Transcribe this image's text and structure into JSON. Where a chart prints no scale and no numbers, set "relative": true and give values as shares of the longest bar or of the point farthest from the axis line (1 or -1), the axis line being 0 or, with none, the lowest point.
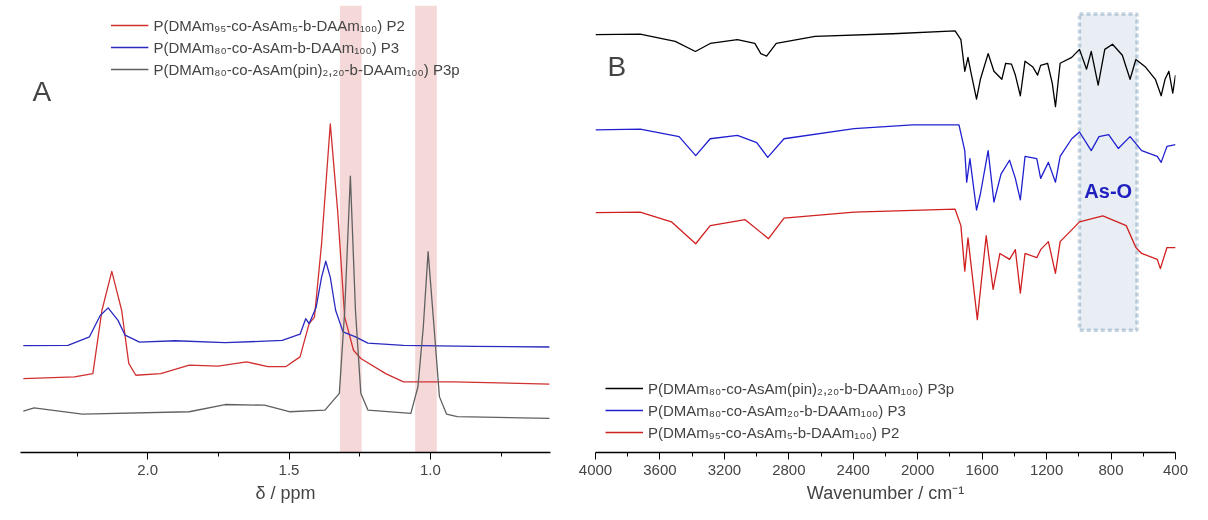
{
  "chart_data": [
    {
      "type": "line",
      "relative": true,
      "xlabel": "δ / ppm",
      "annotations": [
        "A"
      ],
      "legend": "top",
      "tick_labels": "x",
      "xlim": [
        2.45,
        0.575
      ],
      "xticks": [
        {
          "value": 2.25,
          "label": null
        },
        {
          "value": 2.0,
          "label": "2.0"
        },
        {
          "value": 1.75,
          "label": null
        },
        {
          "value": 1.5,
          "label": "1.5"
        },
        {
          "value": 1.25,
          "label": null
        },
        {
          "value": 1.0,
          "label": "1.0"
        },
        {
          "value": 0.75,
          "label": null
        }
      ],
      "bands": [
        {
          "axis": "x",
          "from": 1.32,
          "to": 1.243,
          "color": "#f2d0d0"
        },
        {
          "axis": "x",
          "from": 1.054,
          "to": 0.977,
          "color": "#f2d0d0"
        }
      ],
      "series": [
        {
          "name": "P(DMAm₉₅-co-AsAm₅-b-DAAm₁₀₀) P2",
          "color": "#d03030",
          "x": [
            2.44,
            2.259,
            2.194,
            2.162,
            2.127,
            2.092,
            2.067,
            2.042,
            1.954,
            1.853,
            1.751,
            1.65,
            1.575,
            1.512,
            1.461,
            1.429,
            1.41,
            1.385,
            1.354,
            1.328,
            1.303,
            1.272,
            1.246,
            1.158,
            1.095,
            0.918,
            0.579
          ],
          "values": [
            0.225,
            0.23,
            0.24,
            0.432,
            0.551,
            0.432,
            0.271,
            0.235,
            0.24,
            0.266,
            0.263,
            0.276,
            0.261,
            0.261,
            0.291,
            0.392,
            0.412,
            0.634,
            1.0,
            0.735,
            0.412,
            0.311,
            0.286,
            0.24,
            0.215,
            0.215,
            0.208
          ]
        },
        {
          "name": "P(DMAm₈₀-co-AsAm-b-DAAm₁₀₀) P3",
          "color": "#2a2ac0",
          "x": [
            2.44,
            2.282,
            2.206,
            2.168,
            2.14,
            2.105,
            2.08,
            2.029,
            1.903,
            1.726,
            1.524,
            1.461,
            1.441,
            1.429,
            1.404,
            1.385,
            1.37,
            1.354,
            1.335,
            1.309,
            1.265,
            1.221,
            1.095,
            0.842,
            0.579
          ],
          "values": [
            0.325,
            0.326,
            0.352,
            0.417,
            0.44,
            0.402,
            0.357,
            0.336,
            0.34,
            0.334,
            0.341,
            0.36,
            0.407,
            0.392,
            0.442,
            0.533,
            0.582,
            0.533,
            0.432,
            0.367,
            0.352,
            0.333,
            0.326,
            0.323,
            0.321
          ]
        },
        {
          "name": "P(DMAm₈₀-co-AsAm(pin)₂,₂₀-b-DAAm₁₀₀) P3p",
          "color": "#606060",
          "x": [
            2.44,
            2.402,
            2.231,
            1.853,
            1.726,
            1.587,
            1.499,
            1.373,
            1.322,
            1.303,
            1.283,
            1.265,
            1.246,
            1.221,
            1.069,
            1.044,
            1.025,
            1.008,
            0.987,
            0.968,
            0.943,
            0.905,
            0.579
          ],
          "values": [
            0.126,
            0.136,
            0.117,
            0.124,
            0.146,
            0.144,
            0.124,
            0.129,
            0.18,
            0.432,
            0.841,
            0.432,
            0.18,
            0.129,
            0.119,
            0.2,
            0.382,
            0.611,
            0.382,
            0.17,
            0.117,
            0.109,
            0.104
          ]
        }
      ]
    },
    {
      "type": "line",
      "relative": true,
      "xlabel": "Wavenumber / cm⁻¹",
      "annotations": [
        "B"
      ],
      "legend": "bottom left",
      "tick_labels": "x",
      "xlim": [
        4000,
        400
      ],
      "xticks": [
        4000,
        {
          "value": 3800,
          "label": null
        },
        3600,
        {
          "value": 3400,
          "label": null
        },
        3200,
        {
          "value": 3000,
          "label": null
        },
        2800,
        {
          "value": 2600,
          "label": null
        },
        2400,
        {
          "value": 2200,
          "label": null
        },
        2000,
        {
          "value": 1800,
          "label": null
        },
        1600,
        {
          "value": 1400,
          "label": null
        },
        1200,
        {
          "value": 1000,
          "label": null
        },
        800,
        {
          "value": 600,
          "label": null
        },
        400
      ],
      "bands": [
        {
          "axis": "x",
          "from": 996,
          "to": 639,
          "label": "As-O",
          "color": "#41719c"
        }
      ],
      "series": [
        {
          "name": "P(DMAm₈₀-co-AsAm(pin)₂,₂₀-b-DAAm₁₀₀) P3p",
          "color": "#000000",
          "x": [
            4000,
            3723,
            3505,
            3380,
            3288,
            3119,
            3011,
            2974,
            2938,
            2878,
            2637,
            2154,
            1768,
            1732,
            1708,
            1688,
            1671,
            1635,
            1611,
            1563,
            1527,
            1478,
            1454,
            1418,
            1394,
            1363,
            1334,
            1285,
            1256,
            1237,
            1194,
            1165,
            1145,
            1116,
            1044,
            996,
            952,
            923,
            880,
            839,
            791,
            730,
            682,
            646,
            586,
            525,
            489,
            465,
            441,
            417,
            400
          ],
          "values": [
            0.991,
            0.992,
            0.975,
            0.951,
            0.97,
            0.979,
            0.97,
            0.946,
            0.94,
            0.97,
            0.987,
            0.993,
            1.0,
            0.979,
            0.904,
            0.937,
            0.904,
            0.838,
            0.885,
            0.946,
            0.904,
            0.885,
            0.923,
            0.921,
            0.895,
            0.846,
            0.928,
            0.914,
            0.895,
            0.918,
            0.923,
            0.876,
            0.82,
            0.923,
            0.937,
            0.956,
            0.909,
            0.951,
            0.871,
            0.956,
            0.968,
            0.942,
            0.885,
            0.932,
            0.914,
            0.885,
            0.846,
            0.885,
            0.904,
            0.852,
            0.895
          ]
        },
        {
          "name": "P(DMAm₈₀-co-AsAm₂₀-b-DAAm₁₀₀) P3",
          "color": "#2020d0",
          "x": [
            4000,
            3723,
            3481,
            3378,
            3288,
            3119,
            2999,
            2931,
            2830,
            2395,
            2033,
            1744,
            1708,
            1696,
            1676,
            1635,
            1611,
            1563,
            1527,
            1483,
            1430,
            1394,
            1363,
            1334,
            1261,
            1237,
            1189,
            1145,
            1116,
            1044,
            996,
            923,
            875,
            815,
            755,
            682,
            610,
            513,
            489,
            453,
            400
          ],
          "values": [
            0.765,
            0.767,
            0.749,
            0.704,
            0.744,
            0.752,
            0.735,
            0.7,
            0.744,
            0.768,
            0.777,
            0.777,
            0.716,
            0.641,
            0.697,
            0.575,
            0.613,
            0.716,
            0.594,
            0.66,
            0.693,
            0.65,
            0.599,
            0.702,
            0.697,
            0.65,
            0.688,
            0.641,
            0.702,
            0.744,
            0.76,
            0.716,
            0.749,
            0.754,
            0.721,
            0.749,
            0.716,
            0.702,
            0.688,
            0.726,
            0.73
          ]
        },
        {
          "name": "P(DMAm₉₅-co-AsAm₅-b-DAAm₁₀₀) P2",
          "color": "#d02020",
          "x": [
            4000,
            3723,
            3529,
            3378,
            3288,
            3071,
            2926,
            2830,
            2395,
            1768,
            1732,
            1708,
            1688,
            1630,
            1575,
            1532,
            1490,
            1430,
            1394,
            1363,
            1334,
            1261,
            1237,
            1189,
            1145,
            1116,
            1044,
            996,
            851,
            706,
            646,
            610,
            513,
            494,
            453,
            400
          ],
          "values": [
            0.569,
            0.57,
            0.547,
            0.495,
            0.538,
            0.552,
            0.507,
            0.556,
            0.57,
            0.577,
            0.538,
            0.43,
            0.509,
            0.315,
            0.514,
            0.387,
            0.472,
            0.458,
            0.481,
            0.378,
            0.472,
            0.462,
            0.481,
            0.5,
            0.425,
            0.5,
            0.528,
            0.547,
            0.561,
            0.538,
            0.486,
            0.472,
            0.458,
            0.436,
            0.486,
            0.486
          ]
        }
      ]
    }
  ]
}
